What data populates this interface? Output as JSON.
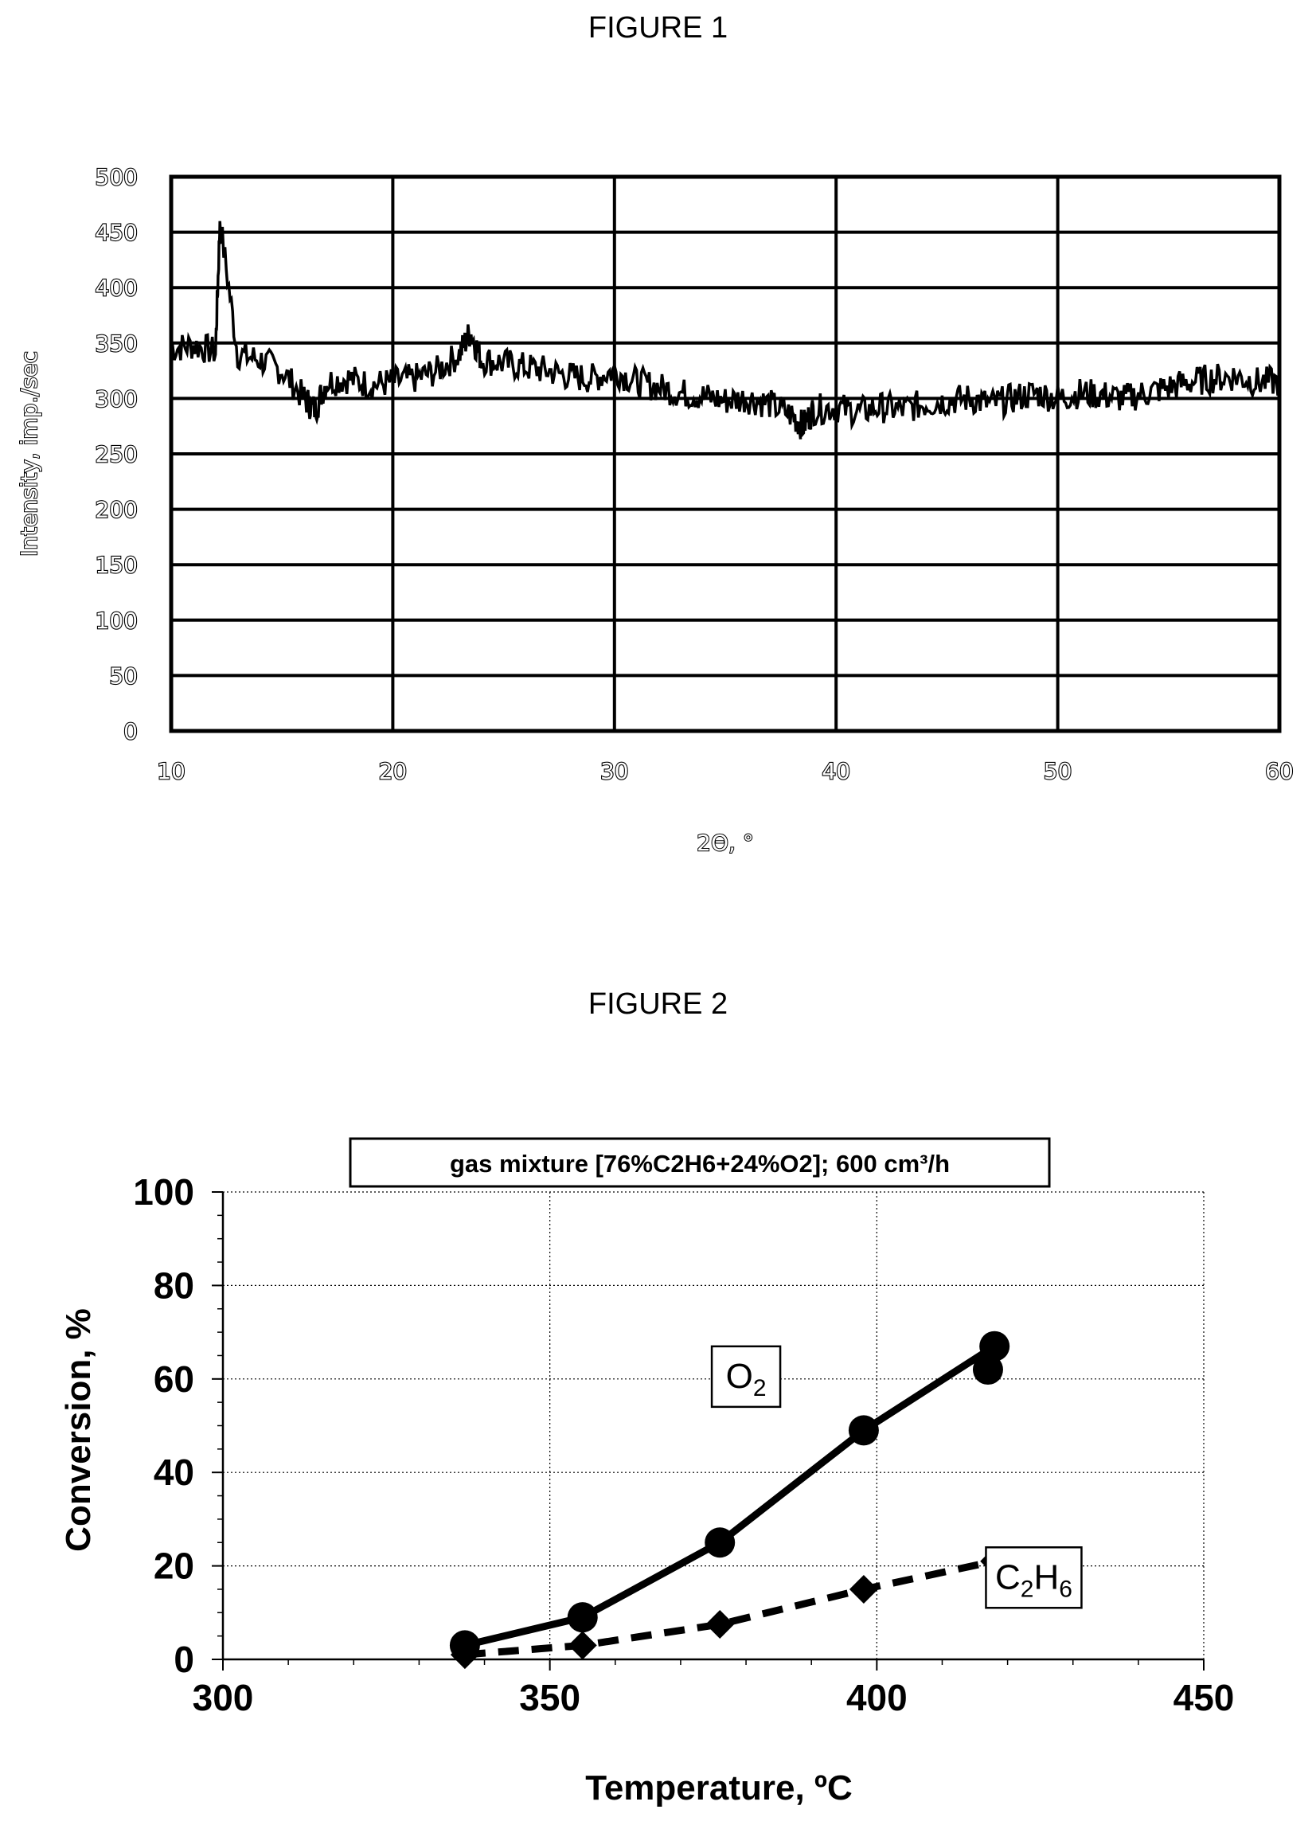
{
  "figure1": {
    "title": "FIGURE 1",
    "chart_data": {
      "type": "line",
      "xlabel": "2Θ, °",
      "ylabel": "Intensity, imp./sec",
      "xlim": [
        10,
        60
      ],
      "ylim": [
        0,
        500
      ],
      "grid": true,
      "x_ticks": [
        "10",
        "20",
        "30",
        "40",
        "50",
        "60"
      ],
      "y_ticks": [
        "0",
        "50",
        "100",
        "150",
        "200",
        "250",
        "300",
        "350",
        "400",
        "450",
        "500"
      ],
      "series": [
        {
          "x": [
            10,
            11,
            12,
            12.2,
            13,
            14,
            15,
            16,
            16.5,
            17,
            18,
            19,
            20,
            21,
            22,
            23,
            23.5,
            24,
            25,
            26,
            27,
            28,
            29,
            30,
            31,
            32,
            33,
            34,
            35,
            36,
            37,
            38,
            38.5,
            39,
            40,
            41,
            42,
            43,
            44,
            45,
            46,
            47,
            48,
            49,
            50,
            51,
            52,
            53,
            54,
            55,
            56,
            57,
            58,
            59,
            60
          ],
          "y": [
            345,
            348,
            342,
            460,
            340,
            335,
            325,
            300,
            290,
            315,
            318,
            312,
            315,
            318,
            325,
            340,
            360,
            335,
            332,
            328,
            325,
            320,
            318,
            325,
            315,
            310,
            305,
            302,
            298,
            300,
            295,
            285,
            275,
            290,
            292,
            288,
            292,
            290,
            295,
            298,
            300,
            295,
            300,
            305,
            300,
            305,
            303,
            300,
            305,
            310,
            315,
            318,
            320,
            315,
            315
          ]
        }
      ]
    }
  },
  "figure2": {
    "title": "FIGURE 2",
    "chart_data": {
      "type": "line",
      "title": "gas mixture [76%C2H6+24%O2]; 600 cm³/h",
      "xlabel": "Temperature, ºC",
      "ylabel": "Conversion, %",
      "xlim": [
        300,
        450
      ],
      "ylim": [
        0,
        100
      ],
      "grid": true,
      "x_ticks": [
        "300",
        "350",
        "400",
        "450"
      ],
      "y_ticks": [
        "0",
        "20",
        "40",
        "60",
        "80",
        "100"
      ],
      "series": [
        {
          "name": "O2",
          "label_parts": [
            "O",
            "2"
          ],
          "marker": "circle",
          "line": "solid",
          "x": [
            337,
            355,
            376,
            398,
            417,
            418
          ],
          "y": [
            3,
            9,
            25,
            49,
            62,
            67
          ]
        },
        {
          "name": "C2H6",
          "label_parts": [
            "C",
            "2",
            "H",
            "6"
          ],
          "marker": "diamond",
          "line": "dashed",
          "x": [
            337,
            355,
            376,
            398,
            418
          ],
          "y": [
            1,
            3,
            7.5,
            15,
            21
          ]
        }
      ]
    }
  }
}
